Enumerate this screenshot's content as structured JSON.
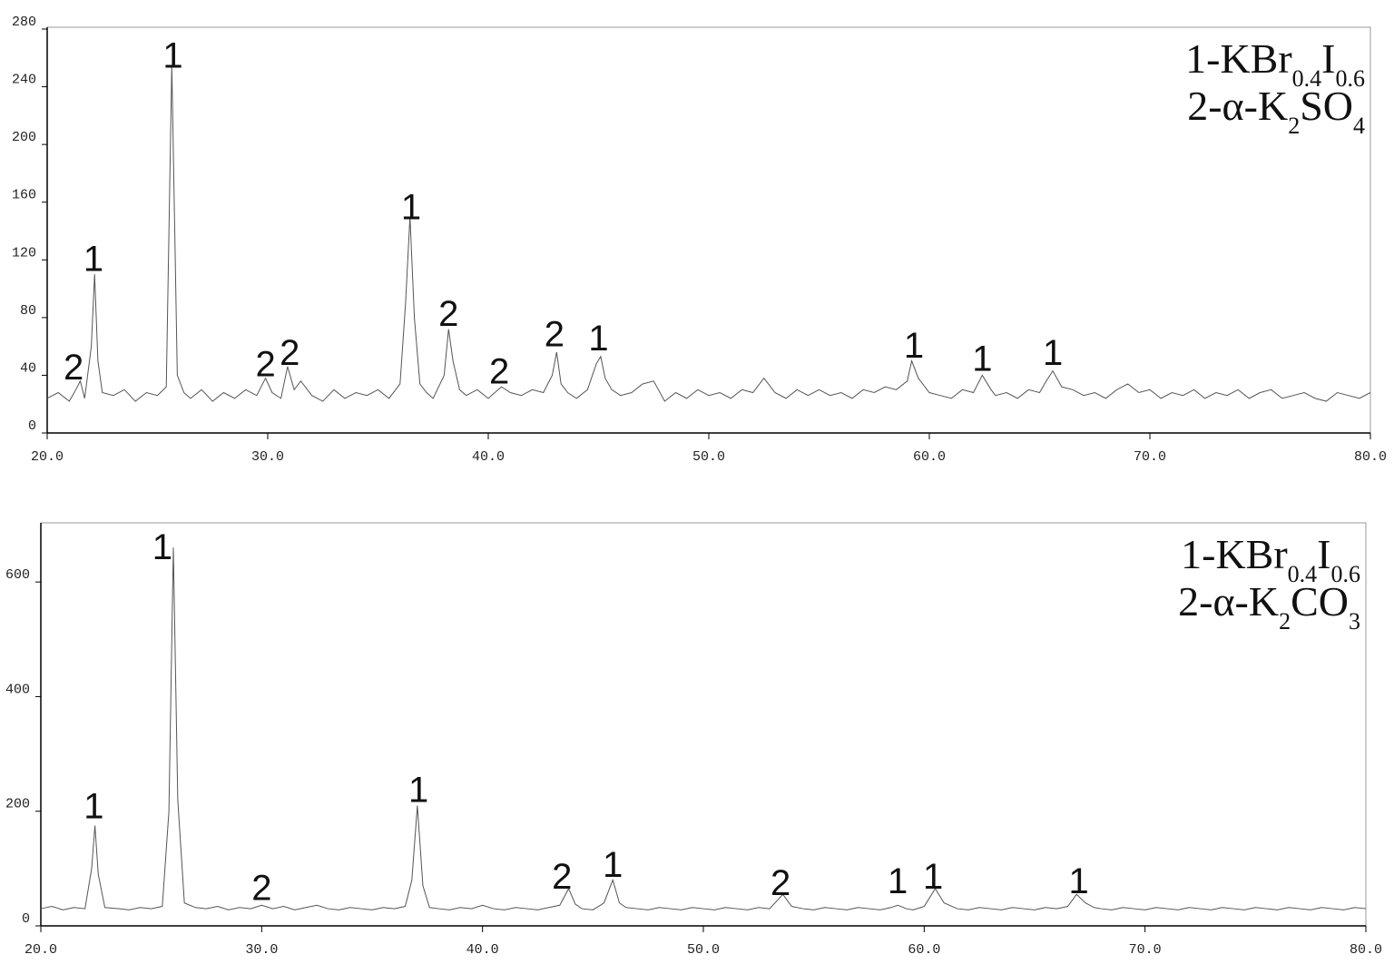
{
  "chart_data": [
    {
      "type": "line",
      "x": [
        20.0,
        20.5,
        21.0,
        21.3,
        21.5,
        21.7,
        22.0,
        22.15,
        22.3,
        22.5,
        23.0,
        23.5,
        24.0,
        24.5,
        25.0,
        25.4,
        25.65,
        25.9,
        26.2,
        26.5,
        27.0,
        27.5,
        28.0,
        28.5,
        29.0,
        29.5,
        29.9,
        30.2,
        30.6,
        30.9,
        31.2,
        31.5,
        32.0,
        32.5,
        33.0,
        33.5,
        34.0,
        34.5,
        35.0,
        35.5,
        36.0,
        36.25,
        36.45,
        36.65,
        36.9,
        37.2,
        37.5,
        38.0,
        38.2,
        38.4,
        38.7,
        39.0,
        39.5,
        40.0,
        40.6,
        41.0,
        41.5,
        42.0,
        42.5,
        42.9,
        43.1,
        43.3,
        43.6,
        44.0,
        44.5,
        44.9,
        45.1,
        45.3,
        45.6,
        46.0,
        46.5,
        47.0,
        47.5,
        48.0,
        48.5,
        49.0,
        49.5,
        50.0,
        50.5,
        51.0,
        51.5,
        52.0,
        52.5,
        53.0,
        53.5,
        54.0,
        54.5,
        55.0,
        55.5,
        56.0,
        56.5,
        57.0,
        57.5,
        58.0,
        58.5,
        59.0,
        59.2,
        59.5,
        60.0,
        60.5,
        61.0,
        61.5,
        62.0,
        62.4,
        62.8,
        63.0,
        63.5,
        64.0,
        64.5,
        65.0,
        65.3,
        65.6,
        66.0,
        66.5,
        67.0,
        67.5,
        68.0,
        68.5,
        69.0,
        69.5,
        70.0,
        70.5,
        71.0,
        71.5,
        72.0,
        72.5,
        73.0,
        73.5,
        74.0,
        74.5,
        75.0,
        75.5,
        76.0,
        76.5,
        77.0,
        77.5,
        78.0,
        78.5,
        79.0,
        79.5,
        80.0
      ],
      "series": [
        {
          "color": "#555555",
          "values": [
            24,
            28,
            22,
            30,
            36,
            24,
            60,
            110,
            50,
            28,
            26,
            30,
            22,
            28,
            26,
            32,
            255,
            40,
            28,
            24,
            30,
            22,
            28,
            24,
            30,
            26,
            38,
            28,
            24,
            46,
            30,
            36,
            26,
            22,
            30,
            24,
            28,
            26,
            30,
            24,
            34,
            90,
            150,
            80,
            34,
            28,
            24,
            40,
            72,
            50,
            30,
            26,
            30,
            24,
            32,
            28,
            26,
            30,
            28,
            40,
            56,
            34,
            28,
            24,
            30,
            48,
            53,
            38,
            30,
            26,
            28,
            34,
            36,
            22,
            28,
            24,
            30,
            26,
            28,
            24,
            30,
            28,
            38,
            28,
            24,
            30,
            26,
            30,
            26,
            28,
            24,
            30,
            28,
            32,
            30,
            36,
            50,
            38,
            28,
            26,
            24,
            30,
            28,
            40,
            30,
            26,
            28,
            24,
            30,
            28,
            36,
            43,
            32,
            30,
            26,
            28,
            24,
            30,
            34,
            28,
            30,
            24,
            28,
            26,
            30,
            24,
            28,
            26,
            30,
            24,
            28,
            30,
            24,
            26,
            28,
            24,
            22,
            28,
            26,
            24,
            28
          ]
        }
      ],
      "xlim": [
        20,
        80
      ],
      "xticks": [
        {
          "value": 20,
          "label": "20.0"
        },
        {
          "value": 30,
          "label": "30.0"
        },
        {
          "value": 40,
          "label": "40.0"
        },
        {
          "value": 50,
          "label": "50.0"
        },
        {
          "value": 60,
          "label": "60.0"
        },
        {
          "value": 70,
          "label": "70.0"
        },
        {
          "value": 80,
          "label": "80.0"
        }
      ],
      "ylim": [
        0,
        280
      ],
      "yticks": [
        0,
        40,
        80,
        120,
        160,
        200,
        240,
        280
      ],
      "annotations": [
        {
          "text": "2",
          "x": 21.2,
          "y": 46
        },
        {
          "text": "1",
          "x": 22.1,
          "y": 121
        },
        {
          "text": "1",
          "x": 25.7,
          "y": 262
        },
        {
          "text": "2",
          "x": 29.9,
          "y": 48
        },
        {
          "text": "2",
          "x": 31.0,
          "y": 56
        },
        {
          "text": "1",
          "x": 36.5,
          "y": 157
        },
        {
          "text": "2",
          "x": 38.2,
          "y": 83
        },
        {
          "text": "2",
          "x": 40.5,
          "y": 43
        },
        {
          "text": "2",
          "x": 43.0,
          "y": 69
        },
        {
          "text": "1",
          "x": 45.0,
          "y": 66
        },
        {
          "text": "1",
          "x": 59.3,
          "y": 61
        },
        {
          "text": "1",
          "x": 62.4,
          "y": 52
        },
        {
          "text": "1",
          "x": 65.6,
          "y": 56
        }
      ],
      "legend": [
        [
          {
            "text": "1-KBr"
          },
          {
            "sub": "0.4"
          },
          {
            "text": "I"
          },
          {
            "sub": "0.6"
          }
        ],
        [
          {
            "text": "2-α-K"
          },
          {
            "sub": "2"
          },
          {
            "text": "SO"
          },
          {
            "sub": "4"
          }
        ]
      ]
    },
    {
      "type": "line",
      "x": [
        20,
        20.5,
        21,
        21.5,
        22,
        22.3,
        22.45,
        22.6,
        22.9,
        23.5,
        24,
        24.5,
        25,
        25.5,
        25.8,
        26.0,
        26.2,
        26.5,
        27,
        27.5,
        28,
        28.5,
        29,
        29.5,
        30,
        30.5,
        31,
        31.5,
        32,
        32.5,
        33,
        33.5,
        34,
        34.5,
        35,
        35.5,
        36,
        36.5,
        36.8,
        37.05,
        37.3,
        37.6,
        38,
        38.5,
        39,
        39.5,
        40,
        40.5,
        41,
        41.5,
        42,
        42.5,
        43,
        43.5,
        43.9,
        44.2,
        44.5,
        45,
        45.5,
        45.9,
        46.2,
        46.5,
        47,
        47.5,
        48,
        48.5,
        49,
        49.5,
        50,
        50.5,
        51,
        51.5,
        52,
        52.5,
        53,
        53.6,
        54,
        54.5,
        55,
        55.5,
        56,
        56.5,
        57,
        57.5,
        58,
        58.5,
        58.8,
        59.2,
        59.5,
        60,
        60.5,
        60.9,
        61.5,
        62,
        62.5,
        63,
        63.5,
        64,
        64.5,
        65,
        65.5,
        66,
        66.5,
        66.9,
        67.3,
        67.7,
        68,
        68.5,
        69,
        69.5,
        70,
        70.5,
        71,
        71.5,
        72,
        72.5,
        73,
        73.5,
        74,
        74.5,
        75,
        75.5,
        76,
        76.5,
        77,
        77.5,
        78,
        78.5,
        79,
        79.5,
        80
      ],
      "series": [
        {
          "color": "#555555",
          "values": [
            30,
            34,
            28,
            32,
            30,
            100,
            175,
            90,
            32,
            30,
            28,
            32,
            30,
            34,
            200,
            660,
            220,
            40,
            32,
            30,
            34,
            28,
            32,
            30,
            36,
            30,
            34,
            28,
            32,
            36,
            30,
            28,
            32,
            30,
            28,
            32,
            30,
            34,
            80,
            210,
            70,
            32,
            30,
            28,
            32,
            30,
            36,
            30,
            28,
            32,
            30,
            28,
            32,
            36,
            65,
            38,
            30,
            28,
            40,
            80,
            40,
            32,
            30,
            28,
            32,
            30,
            28,
            32,
            30,
            28,
            32,
            30,
            28,
            32,
            30,
            55,
            34,
            30,
            28,
            32,
            30,
            28,
            32,
            30,
            28,
            32,
            36,
            30,
            28,
            34,
            65,
            40,
            30,
            28,
            32,
            30,
            28,
            32,
            30,
            28,
            32,
            30,
            34,
            55,
            40,
            32,
            30,
            28,
            32,
            30,
            28,
            32,
            30,
            28,
            32,
            30,
            28,
            32,
            30,
            28,
            32,
            30,
            28,
            32,
            30,
            28,
            32,
            30,
            28,
            32,
            30
          ]
        }
      ],
      "xlim": [
        20,
        80
      ],
      "xticks": [
        {
          "value": 20,
          "label": "20.0"
        },
        {
          "value": 30,
          "label": "30.0"
        },
        {
          "value": 40,
          "label": "40.0"
        },
        {
          "value": 50,
          "label": "50.0"
        },
        {
          "value": 60,
          "label": "60.0"
        },
        {
          "value": 70,
          "label": "70.0"
        },
        {
          "value": 80,
          "label": "80.0"
        }
      ],
      "ylim": [
        0,
        700
      ],
      "yticks": [
        0,
        200,
        400,
        600
      ],
      "annotations": [
        {
          "text": "1",
          "x": 22.4,
          "y": 210
        },
        {
          "text": "1",
          "x": 25.5,
          "y": 662
        },
        {
          "text": "2",
          "x": 30.0,
          "y": 67
        },
        {
          "text": "1",
          "x": 37.1,
          "y": 238
        },
        {
          "text": "2",
          "x": 43.6,
          "y": 87
        },
        {
          "text": "1",
          "x": 45.9,
          "y": 108
        },
        {
          "text": "2",
          "x": 53.5,
          "y": 76
        },
        {
          "text": "1",
          "x": 58.8,
          "y": 79
        },
        {
          "text": "1",
          "x": 60.4,
          "y": 87
        },
        {
          "text": "1",
          "x": 67.0,
          "y": 79
        }
      ],
      "legend": [
        [
          {
            "text": "1-KBr"
          },
          {
            "sub": "0.4"
          },
          {
            "text": "I"
          },
          {
            "sub": "0.6"
          }
        ],
        [
          {
            "text": "2-α-K"
          },
          {
            "sub": "2"
          },
          {
            "text": "CO"
          },
          {
            "sub": "3"
          }
        ]
      ]
    }
  ]
}
